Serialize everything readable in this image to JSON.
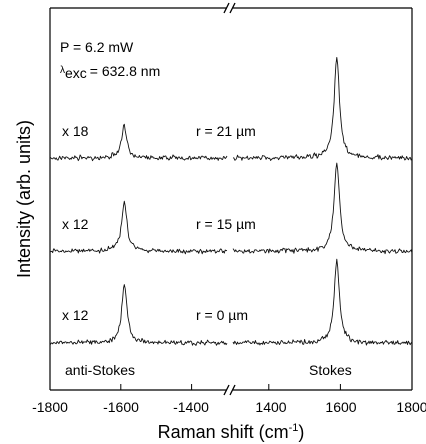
{
  "chart_data": {
    "type": "line",
    "title": "",
    "xlabel": "Raman shift (cm",
    "xlabel_sup": "-1",
    "xlabel_end": ")",
    "ylabel": "Intensity (arb. units)",
    "broken_axis": true,
    "panels": [
      {
        "name": "anti-Stokes",
        "xlim": [
          -1800,
          -1300
        ],
        "ticks": [
          "-1800",
          "-1600",
          "-1400"
        ],
        "tick_values": [
          -1800,
          -1600,
          -1400
        ]
      },
      {
        "name": "Stokes",
        "xlim": [
          1300,
          1800
        ],
        "ticks": [
          "1400",
          "1600",
          "1800"
        ],
        "tick_values": [
          1400,
          1600,
          1800
        ]
      }
    ],
    "conditions": {
      "power": "P = 6.2 mW",
      "lambda_sub": "exc",
      "lambda_value": "= 632.8 nm"
    },
    "series": [
      {
        "name": "r = 21 µm",
        "scale": "x 18",
        "anti_stokes_peak": {
          "x": -1590,
          "height": 0.32
        },
        "stokes_peak": {
          "x": 1590,
          "height": 1.0
        }
      },
      {
        "name": "r = 15 µm",
        "scale": "x 12",
        "anti_stokes_peak": {
          "x": -1590,
          "height": 0.55
        },
        "stokes_peak": {
          "x": 1590,
          "height": 1.0
        }
      },
      {
        "name": "r = 0 µm",
        "scale": "x 12",
        "anti_stokes_peak": {
          "x": -1590,
          "height": 0.72
        },
        "stokes_peak": {
          "x": 1590,
          "height": 1.0
        }
      }
    ],
    "region_labels": [
      "anti-Stokes",
      "Stokes"
    ],
    "grid": false,
    "legend": "none"
  }
}
